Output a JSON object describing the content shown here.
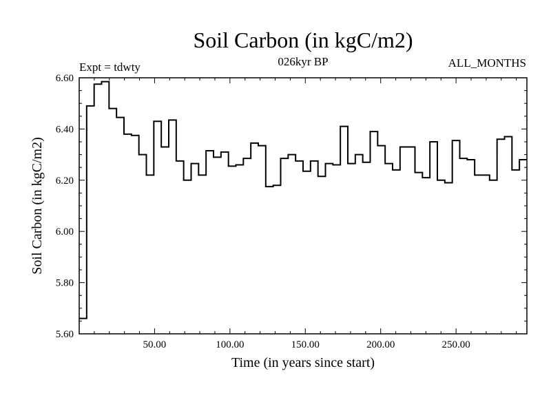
{
  "chart_data": {
    "type": "line",
    "style": "step",
    "title": "Soil Carbon (in kgC/m2)",
    "subtitle": "026kyr BP",
    "left_note": "Expt = tdwty",
    "right_note": "ALL_MONTHS",
    "xlabel": "Time (in years since start)",
    "ylabel": "Soil Carbon (in kgC/m2)",
    "xlim": [
      0,
      297
    ],
    "ylim": [
      5.6,
      6.6
    ],
    "x_ticks": [
      50,
      100,
      150,
      200,
      250
    ],
    "x_tick_labels": [
      "50.00",
      "100.00",
      "150.00",
      "200.00",
      "250.00"
    ],
    "y_ticks": [
      5.6,
      5.8,
      6.0,
      6.2,
      6.4,
      6.6
    ],
    "y_tick_labels": [
      "5.60",
      "5.80",
      "6.00",
      "6.20",
      "6.40",
      "6.60"
    ],
    "series": [
      {
        "name": "Soil Carbon",
        "values": [
          5.66,
          6.49,
          6.575,
          6.585,
          6.48,
          6.445,
          6.38,
          6.375,
          6.3,
          6.22,
          6.43,
          6.33,
          6.435,
          6.275,
          6.2,
          6.265,
          6.22,
          6.315,
          6.29,
          6.31,
          6.255,
          6.26,
          6.285,
          6.345,
          6.335,
          6.175,
          6.18,
          6.285,
          6.3,
          6.275,
          6.235,
          6.275,
          6.215,
          6.265,
          6.26,
          6.41,
          6.265,
          6.3,
          6.27,
          6.39,
          6.335,
          6.265,
          6.24,
          6.33,
          6.33,
          6.23,
          6.21,
          6.35,
          6.2,
          6.19,
          6.355,
          6.285,
          6.28,
          6.22,
          6.22,
          6.2,
          6.36,
          6.37,
          6.24,
          6.28
        ]
      }
    ]
  }
}
